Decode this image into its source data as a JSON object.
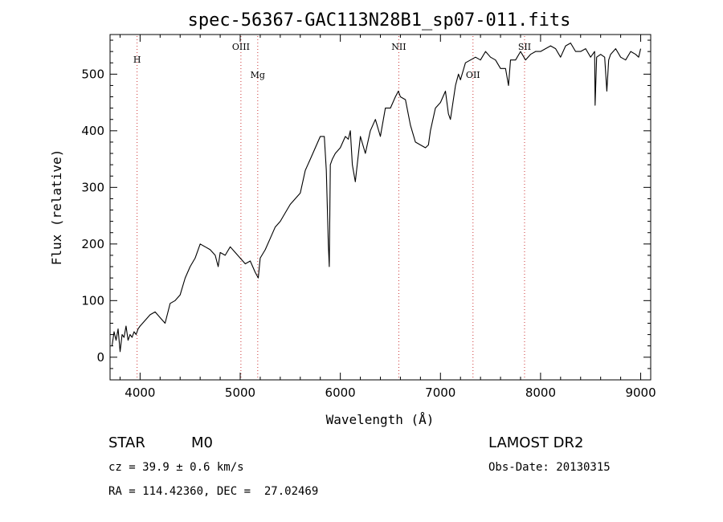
{
  "chart_data": {
    "type": "line",
    "title": "spec-56367-GAC113N28B1_sp07-011.fits",
    "xlabel": "Wavelength (Å)",
    "ylabel": "Flux (relative)",
    "xlim": [
      3700,
      9100
    ],
    "ylim": [
      -40,
      570
    ],
    "xticks": [
      4000,
      5000,
      6000,
      7000,
      8000,
      9000
    ],
    "yticks": [
      0,
      100,
      200,
      300,
      400,
      500
    ],
    "grid": false,
    "line_color": "#000000",
    "marker_color": "#cc3333",
    "spectral_lines": [
      {
        "label": "H",
        "x": 3970
      },
      {
        "label": "OIII",
        "x": 5007
      },
      {
        "label": "Mg",
        "x": 5175
      },
      {
        "label": "NII",
        "x": 6584
      },
      {
        "label": "OII",
        "x": 7325
      },
      {
        "label": "SII",
        "x": 7840
      }
    ],
    "series": [
      {
        "x": [
          3720,
          3740,
          3760,
          3780,
          3800,
          3820,
          3840,
          3860,
          3880,
          3900,
          3920,
          3940,
          3960,
          3980,
          4000,
          4050,
          4100,
          4150,
          4200,
          4250,
          4300,
          4350,
          4400,
          4450,
          4500,
          4550,
          4600,
          4650,
          4700,
          4750,
          4780,
          4800,
          4850,
          4900,
          4950,
          5000,
          5050,
          5100,
          5150,
          5180,
          5200,
          5250,
          5300,
          5350,
          5400,
          5450,
          5500,
          5550,
          5600,
          5650,
          5700,
          5750,
          5800,
          5840,
          5860,
          5880,
          5890,
          5900,
          5920,
          5950,
          6000,
          6050,
          6080,
          6100,
          6120,
          6150,
          6200,
          6250,
          6300,
          6350,
          6400,
          6450,
          6500,
          6550,
          6580,
          6600,
          6650,
          6700,
          6750,
          6800,
          6850,
          6880,
          6900,
          6950,
          7000,
          7050,
          7080,
          7100,
          7150,
          7180,
          7200,
          7250,
          7300,
          7350,
          7400,
          7450,
          7500,
          7550,
          7600,
          7650,
          7680,
          7700,
          7750,
          7800,
          7850,
          7900,
          7950,
          8000,
          8050,
          8100,
          8150,
          8200,
          8250,
          8300,
          8350,
          8400,
          8450,
          8500,
          8540,
          8545,
          8560,
          8600,
          8640,
          8662,
          8680,
          8700,
          8750,
          8800,
          8850,
          8900,
          8950,
          8980,
          9000
        ],
        "y": [
          20,
          45,
          30,
          50,
          10,
          40,
          35,
          55,
          30,
          40,
          35,
          45,
          40,
          50,
          55,
          65,
          75,
          80,
          70,
          60,
          95,
          100,
          110,
          140,
          160,
          175,
          200,
          195,
          190,
          180,
          160,
          185,
          180,
          195,
          185,
          175,
          165,
          170,
          150,
          140,
          175,
          190,
          210,
          230,
          240,
          255,
          270,
          280,
          290,
          330,
          350,
          370,
          390,
          390,
          330,
          200,
          160,
          340,
          350,
          360,
          370,
          390,
          385,
          400,
          340,
          310,
          390,
          360,
          400,
          420,
          390,
          440,
          440,
          460,
          470,
          460,
          455,
          410,
          380,
          375,
          370,
          375,
          400,
          440,
          450,
          470,
          430,
          420,
          480,
          500,
          490,
          520,
          525,
          530,
          525,
          540,
          530,
          525,
          510,
          510,
          480,
          525,
          525,
          540,
          525,
          535,
          540,
          540,
          545,
          550,
          545,
          530,
          550,
          555,
          540,
          540,
          545,
          530,
          540,
          445,
          530,
          535,
          530,
          470,
          525,
          535,
          545,
          530,
          525,
          540,
          535,
          530,
          545
        ]
      }
    ]
  },
  "info": {
    "object_class": "STAR",
    "subclass": "M0",
    "survey": "LAMOST DR2",
    "velocity": "cz = 39.9 ± 0.6 km/s",
    "obs_date": "Obs-Date: 20130315",
    "coords": "RA = 114.42360, DEC =  27.02469"
  }
}
